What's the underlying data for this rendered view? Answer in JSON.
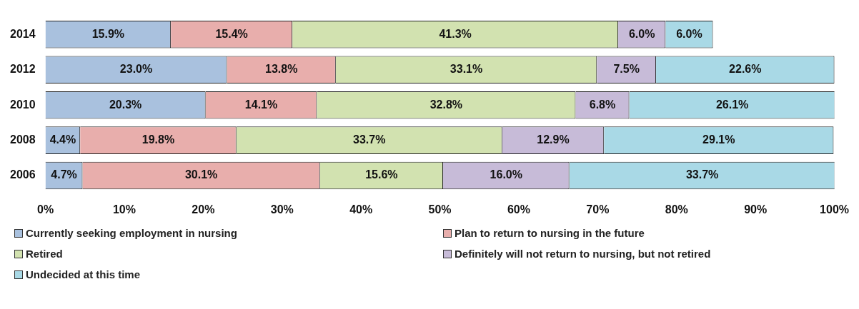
{
  "chart_data": {
    "type": "bar",
    "orientation": "horizontal",
    "stacked": true,
    "categories": [
      "2014",
      "2012",
      "2010",
      "2008",
      "2006"
    ],
    "series": [
      {
        "name": "Currently seeking employment in nursing",
        "color": "#a9c1de",
        "values": [
          15.9,
          23.0,
          20.3,
          4.4,
          4.7
        ],
        "value_labels": [
          "15.9%",
          "23.0%",
          "20.3%",
          "4.4%",
          "4.7%"
        ]
      },
      {
        "name": "Plan to return to nursing in the future",
        "color": "#e8aeac",
        "values": [
          15.4,
          13.8,
          14.1,
          19.8,
          30.1
        ],
        "value_labels": [
          "15.4%",
          "13.8%",
          "14.1%",
          "19.8%",
          "30.1%"
        ]
      },
      {
        "name": "Retired",
        "color": "#d2e2b0",
        "values": [
          41.3,
          33.1,
          32.8,
          33.7,
          15.6
        ],
        "value_labels": [
          "41.3%",
          "33.1%",
          "32.8%",
          "33.7%",
          "15.6%"
        ]
      },
      {
        "name": "Definitely will not return to nursing, but not retired",
        "color": "#c7bbd8",
        "values": [
          6.0,
          7.5,
          6.8,
          12.9,
          16.0
        ],
        "value_labels": [
          "6.0%",
          "7.5%",
          "6.8%",
          "12.9%",
          "16.0%"
        ]
      },
      {
        "name": "Undecided at this time",
        "color": "#a9d9e6",
        "values": [
          6.0,
          22.6,
          26.1,
          29.1,
          33.7
        ],
        "value_labels": [
          "6.0%",
          "22.6%",
          "26.1%",
          "29.1%",
          "33.7%"
        ]
      }
    ],
    "xlim": [
      0,
      100
    ],
    "xticks": [
      {
        "value": 0,
        "label": "0%"
      },
      {
        "value": 10,
        "label": "10%"
      },
      {
        "value": 20,
        "label": "20%"
      },
      {
        "value": 30,
        "label": "30%"
      },
      {
        "value": 40,
        "label": "40%"
      },
      {
        "value": 50,
        "label": "50%"
      },
      {
        "value": 60,
        "label": "60%"
      },
      {
        "value": 70,
        "label": "70%"
      },
      {
        "value": 80,
        "label": "80%"
      },
      {
        "value": 90,
        "label": "90%"
      },
      {
        "value": 100,
        "label": "100%"
      }
    ],
    "grid": false,
    "legend": "bottom"
  }
}
